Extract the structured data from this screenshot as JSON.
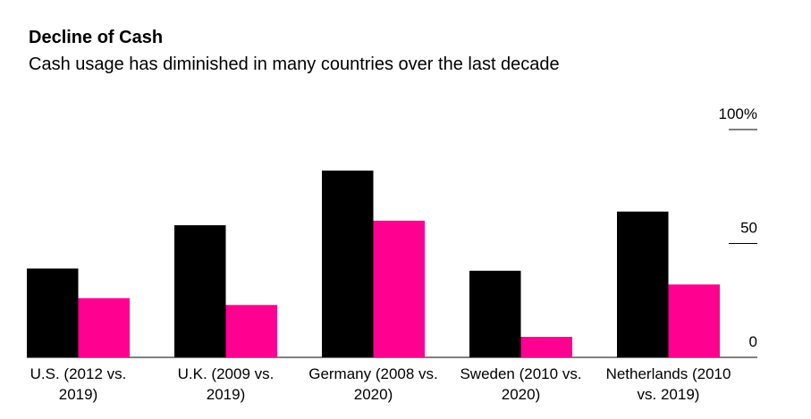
{
  "chart_data": {
    "type": "bar",
    "title": "Decline of Cash",
    "subtitle": "Cash usage has diminished in many countries over the last decade",
    "categories": [
      "U.S. (2012 vs. 2019)",
      "U.K. (2009 vs. 2019)",
      "Germany (2008 vs. 2020)",
      "Sweden (2010 vs. 2020)",
      "Netherlands (2010 vs. 2019)"
    ],
    "series": [
      {
        "color": "#000000",
        "values": [
          39,
          58,
          82,
          38,
          64
        ]
      },
      {
        "color": "#ff0090",
        "values": [
          26,
          23,
          60,
          9,
          32
        ]
      }
    ],
    "ylim": [
      0,
      100
    ],
    "yticks": [
      0,
      50,
      {
        "value": 100,
        "label": "100%"
      }
    ]
  }
}
